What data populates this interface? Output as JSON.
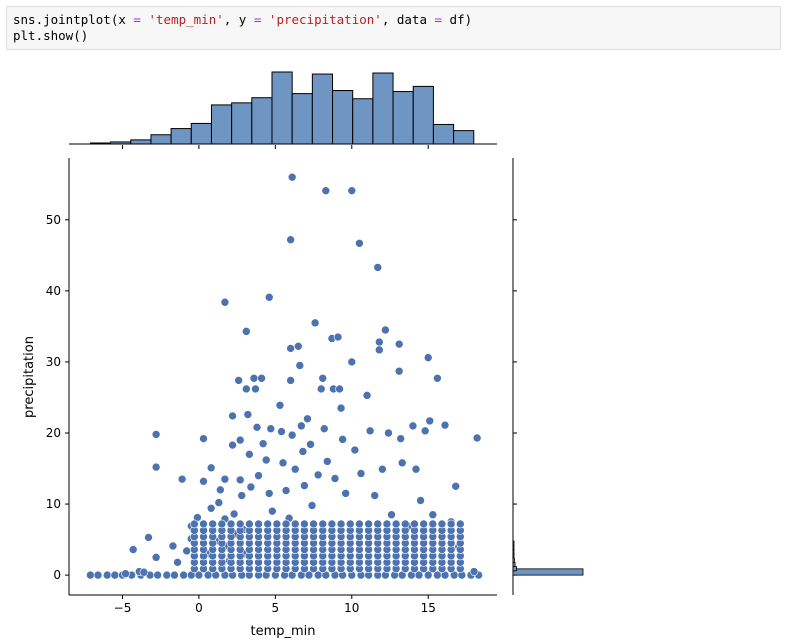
{
  "code": {
    "line1": [
      {
        "text": "sns.jointplot(x ",
        "cls": ""
      },
      {
        "text": "=",
        "cls": "tok-op"
      },
      {
        "text": " ",
        "cls": ""
      },
      {
        "text": "'temp_min'",
        "cls": "tok-str"
      },
      {
        "text": ", y ",
        "cls": ""
      },
      {
        "text": "=",
        "cls": "tok-op"
      },
      {
        "text": " ",
        "cls": ""
      },
      {
        "text": "'precipitation'",
        "cls": "tok-str"
      },
      {
        "text": ", data ",
        "cls": ""
      },
      {
        "text": "=",
        "cls": "tok-op"
      },
      {
        "text": " df)",
        "cls": ""
      }
    ],
    "line2": "plt.show()"
  },
  "colors": {
    "point": "#4c72b0",
    "bar": "#6f95c2",
    "bar_edge": "#000000",
    "spine": "#000000"
  },
  "chart_data": {
    "type": "scatter",
    "title": "",
    "xlabel": "temp_min",
    "ylabel": "precipitation",
    "xlim": [
      -8.5,
      19.5
    ],
    "ylim": [
      -2.8,
      58.7
    ],
    "xticks": [
      -5,
      0,
      5,
      10,
      15
    ],
    "yticks": [
      0,
      10,
      20,
      30,
      40,
      50
    ],
    "xtick_labels": [
      "−5",
      "0",
      "5",
      "10",
      "15"
    ],
    "ytick_labels": [
      "0",
      "10",
      "20",
      "30",
      "40",
      "50"
    ],
    "grid": false,
    "points_zero_row_x": [
      -7.1,
      -6.6,
      -6.0,
      -5.5,
      -5.0,
      -4.4,
      -3.8,
      -3.2,
      -2.7,
      -2.1,
      -1.6,
      -1.0,
      -0.5,
      0.0,
      0.6,
      1.1,
      1.7,
      2.2,
      2.8,
      3.3,
      3.9,
      4.4,
      5.0,
      5.6,
      6.1,
      6.7,
      7.2,
      7.8,
      8.3,
      8.9,
      9.4,
      10.0,
      10.6,
      11.1,
      11.7,
      12.2,
      12.8,
      13.3,
      13.9,
      14.4,
      15.0,
      15.6,
      16.1,
      16.7,
      17.2,
      17.8,
      18.3
    ],
    "points": [
      [
        -4.8,
        0.2
      ],
      [
        -4.3,
        3.6
      ],
      [
        -3.9,
        0.5
      ],
      [
        -3.6,
        0.4
      ],
      [
        -3.3,
        5.3
      ],
      [
        -2.8,
        19.8
      ],
      [
        -2.8,
        15.2
      ],
      [
        -2.8,
        2.5
      ],
      [
        -1.7,
        4.1
      ],
      [
        -1.4,
        1.8
      ],
      [
        -1.1,
        13.5
      ],
      [
        -0.8,
        3.4
      ],
      [
        -0.5,
        6.9
      ],
      [
        -0.5,
        5.1
      ],
      [
        -0.1,
        8.1
      ],
      [
        0.3,
        19.2
      ],
      [
        0.3,
        13.2
      ],
      [
        0.3,
        2.5
      ],
      [
        0.6,
        3.0
      ],
      [
        0.8,
        9.4
      ],
      [
        0.8,
        15.1
      ],
      [
        0.9,
        6.3
      ],
      [
        1.1,
        4.8
      ],
      [
        1.3,
        10.2
      ],
      [
        1.4,
        12.0
      ],
      [
        1.5,
        1.5
      ],
      [
        1.7,
        38.4
      ],
      [
        1.7,
        13.5
      ],
      [
        1.7,
        7.9
      ],
      [
        1.9,
        4.1
      ],
      [
        2.0,
        2.0
      ],
      [
        2.2,
        22.4
      ],
      [
        2.2,
        18.3
      ],
      [
        2.3,
        8.6
      ],
      [
        2.4,
        5.8
      ],
      [
        2.6,
        27.4
      ],
      [
        2.7,
        19.0
      ],
      [
        2.7,
        13.4
      ],
      [
        2.8,
        11.2
      ],
      [
        2.9,
        6.4
      ],
      [
        3.0,
        3.0
      ],
      [
        3.1,
        34.3
      ],
      [
        3.1,
        26.2
      ],
      [
        3.2,
        22.6
      ],
      [
        3.3,
        17.0
      ],
      [
        3.4,
        12.4
      ],
      [
        3.6,
        27.7
      ],
      [
        3.7,
        26.2
      ],
      [
        3.8,
        20.8
      ],
      [
        3.9,
        14.0
      ],
      [
        4.1,
        27.7
      ],
      [
        4.2,
        18.5
      ],
      [
        4.4,
        16.2
      ],
      [
        4.6,
        11.5
      ],
      [
        4.6,
        39.1
      ],
      [
        4.7,
        20.6
      ],
      [
        4.8,
        9.0
      ],
      [
        5.3,
        23.9
      ],
      [
        5.4,
        20.2
      ],
      [
        5.5,
        15.8
      ],
      [
        5.7,
        11.9
      ],
      [
        5.9,
        8.0
      ],
      [
        6.0,
        47.2
      ],
      [
        6.0,
        31.9
      ],
      [
        6.0,
        27.4
      ],
      [
        6.1,
        56.0
      ],
      [
        6.1,
        19.7
      ],
      [
        6.3,
        14.9
      ],
      [
        6.5,
        32.2
      ],
      [
        6.6,
        29.5
      ],
      [
        6.7,
        21.0
      ],
      [
        6.8,
        17.4
      ],
      [
        6.9,
        12.6
      ],
      [
        7.1,
        22.0
      ],
      [
        7.3,
        18.4
      ],
      [
        7.4,
        9.8
      ],
      [
        7.6,
        35.5
      ],
      [
        7.8,
        14.1
      ],
      [
        8.0,
        26.2
      ],
      [
        8.1,
        27.7
      ],
      [
        8.2,
        20.6
      ],
      [
        8.3,
        54.1
      ],
      [
        8.4,
        16.0
      ],
      [
        8.7,
        33.3
      ],
      [
        8.8,
        26.2
      ],
      [
        8.9,
        13.6
      ],
      [
        9.1,
        33.5
      ],
      [
        9.2,
        26.2
      ],
      [
        9.3,
        23.5
      ],
      [
        9.4,
        19.1
      ],
      [
        9.6,
        11.5
      ],
      [
        10.0,
        54.1
      ],
      [
        10.0,
        30.0
      ],
      [
        10.2,
        17.6
      ],
      [
        10.5,
        46.7
      ],
      [
        10.6,
        14.3
      ],
      [
        11.0,
        25.3
      ],
      [
        11.2,
        20.3
      ],
      [
        11.5,
        11.2
      ],
      [
        11.7,
        43.3
      ],
      [
        11.8,
        32.8
      ],
      [
        11.8,
        31.7
      ],
      [
        12.0,
        14.9
      ],
      [
        12.2,
        34.5
      ],
      [
        12.4,
        20.0
      ],
      [
        12.6,
        8.5
      ],
      [
        13.1,
        32.5
      ],
      [
        13.1,
        28.7
      ],
      [
        13.2,
        19.2
      ],
      [
        13.3,
        15.8
      ],
      [
        13.7,
        6.9
      ],
      [
        14.0,
        21.0
      ],
      [
        14.2,
        14.9
      ],
      [
        14.5,
        10.5
      ],
      [
        14.8,
        20.3
      ],
      [
        15.0,
        30.6
      ],
      [
        15.1,
        21.7
      ],
      [
        15.3,
        8.5
      ],
      [
        15.6,
        27.7
      ],
      [
        16.1,
        21.1
      ],
      [
        16.5,
        7.5
      ],
      [
        16.8,
        12.5
      ],
      [
        17.0,
        4.0
      ],
      [
        18.2,
        19.3
      ],
      [
        18.0,
        0.5
      ]
    ],
    "dense_band_x": [
      -0.3,
      0.3,
      0.9,
      1.5,
      2.1,
      2.7,
      3.3,
      3.9,
      4.5,
      5.1,
      5.7,
      6.3,
      6.9,
      7.5,
      8.1,
      8.7,
      9.3,
      9.9,
      10.5,
      11.1,
      11.7,
      12.3,
      12.9,
      13.5,
      14.1,
      14.7,
      15.3,
      15.9,
      16.5,
      17.1
    ],
    "dense_band_y": [
      0.9,
      1.8,
      2.7,
      3.6,
      4.5,
      5.4,
      6.3,
      7.2
    ],
    "marginal_x": {
      "bin_edges": [
        -7.1,
        -5.78,
        -4.46,
        -3.14,
        -1.82,
        -0.5,
        0.82,
        2.14,
        3.46,
        4.78,
        6.1,
        7.42,
        8.74,
        10.06,
        11.38,
        12.7,
        14.02,
        15.34,
        16.66,
        17.98
      ],
      "counts": [
        1,
        2,
        4,
        9,
        15,
        20,
        38,
        40,
        45,
        70,
        49,
        68,
        52,
        44,
        69,
        51,
        56,
        19,
        13
      ]
    },
    "marginal_y": {
      "bins": [
        0.0,
        0.6,
        1.2,
        1.8,
        2.4,
        3.0,
        3.6,
        4.2
      ],
      "counts": [
        1000,
        50,
        30,
        20,
        12,
        8,
        5,
        3
      ]
    }
  }
}
